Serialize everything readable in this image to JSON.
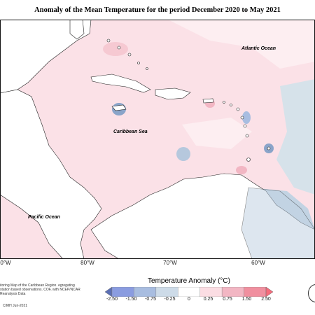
{
  "title": "Anomaly of the Mean Temperature for the period December 2020 to May 2021",
  "map_labels": {
    "atlantic": "Atlantic Ocean",
    "caribbean": "Caribbean Sea",
    "pacific": "Pacific Ocean"
  },
  "x_ticks": [
    "0°W",
    "80°W",
    "70°W",
    "60°W"
  ],
  "legend": {
    "title": "Temperature Anomaly (°C)",
    "levels": [
      "-2.50",
      "-1.50",
      "-0.75",
      "-0.25",
      "0",
      "0.25",
      "0.75",
      "1.50",
      "2.50"
    ],
    "colors": [
      "#5b6fb5",
      "#8a9ce0",
      "#a8bde0",
      "#cddbe8",
      "#ffffff",
      "#fbdde3",
      "#f2b6c3",
      "#f08f9f",
      "#f56b7b"
    ]
  },
  "credit": "itoring Map of the Caribbean Region. egregating station based observations. COF, with NCEP/NCAR Reanalysis Data",
  "copyright": "CIMH Jun-2021",
  "colors": {
    "land": "#ffffff",
    "sea_warm": "#fbe1e7",
    "sea_cool": "#d6e2ea",
    "sea_cold": "#8aa4c9"
  }
}
